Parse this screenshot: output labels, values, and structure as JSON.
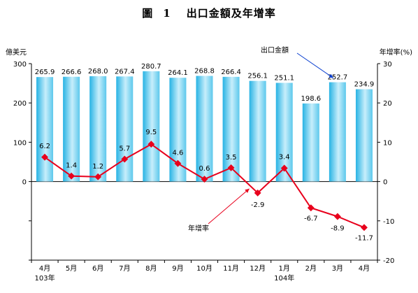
{
  "title": {
    "prefix": "圖",
    "number": "1",
    "text": "出口金額及年增率"
  },
  "chart_data": {
    "type": "bar",
    "categories": [
      "4月",
      "5月",
      "6月",
      "7月",
      "8月",
      "9月",
      "10月",
      "11月",
      "12月",
      "1月",
      "2月",
      "3月",
      "4月"
    ],
    "year_labels": [
      {
        "index": 0,
        "label": "103年"
      },
      {
        "index": 9,
        "label": "104年"
      }
    ],
    "series": [
      {
        "name": "出口金額",
        "type": "bar",
        "axis": "left",
        "values": [
          265.9,
          266.6,
          268.0,
          267.4,
          280.7,
          264.1,
          268.8,
          266.4,
          256.1,
          251.1,
          198.6,
          252.7,
          234.9
        ],
        "labels": [
          "265.9",
          "266.6",
          "268.0",
          "267.4",
          "280.7",
          "264.1",
          "268.8",
          "266.4",
          "256.1",
          "251.1",
          "198.6",
          "252.7",
          "234.9"
        ]
      },
      {
        "name": "年增率",
        "type": "line",
        "axis": "right",
        "values": [
          6.2,
          1.4,
          1.2,
          5.7,
          9.5,
          4.6,
          0.6,
          3.5,
          -2.9,
          3.4,
          -6.7,
          -8.9,
          -11.7
        ],
        "labels": [
          "6.2",
          "1.4",
          "1.2",
          "5.7",
          "9.5",
          "4.6",
          "0.6",
          "3.5",
          "-2.9",
          "3.4",
          "-6.7",
          "-8.9",
          "-11.7"
        ]
      }
    ],
    "ylabel_left": "億美元",
    "ylabel_right": "年增率(%)",
    "ylim_left": [
      -200,
      300
    ],
    "ylim_right": [
      -20,
      30
    ],
    "left_ticks": [
      "300",
      "200",
      "100",
      "0"
    ],
    "left_tick_values": [
      300,
      200,
      100,
      0
    ],
    "right_ticks": [
      "30",
      "20",
      "10",
      "0",
      "-10",
      "-20"
    ],
    "right_tick_values": [
      30,
      20,
      10,
      0,
      -10,
      -20
    ],
    "grid": false,
    "annotations": [
      {
        "text": "出口金額",
        "points_to": "bar",
        "index": 11
      },
      {
        "text": "年增率",
        "points_to": "line",
        "index": 8
      }
    ],
    "colors": {
      "bar_dark": "#29b6e6",
      "bar_light": "#d8f3fc",
      "line": "#e8001c",
      "arrow_bar": "#0a3fd0",
      "arrow_line": "#e8001c"
    }
  }
}
